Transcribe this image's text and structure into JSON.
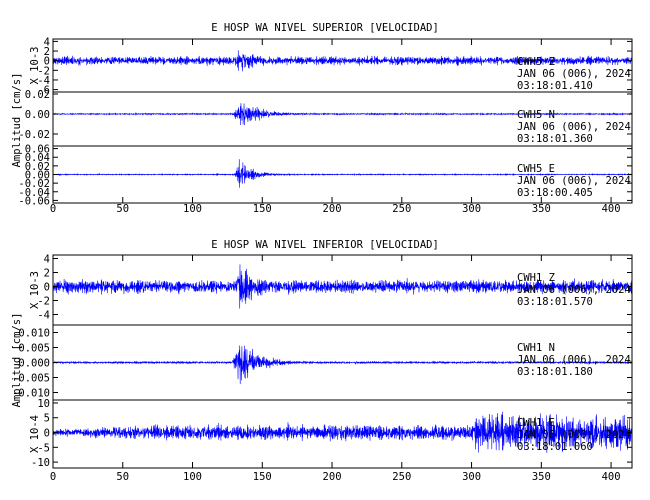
{
  "chart_data": [
    {
      "type": "line",
      "title": "E HOSP WA NIVEL SUPERIOR [VELOCIDAD]",
      "ylabel": "Amplitud [cm/s]",
      "xlim": [
        0,
        415
      ],
      "xticks": [
        0,
        50,
        100,
        150,
        200,
        250,
        300,
        350,
        400
      ],
      "traces": [
        {
          "channel": "CWH5   Z",
          "date": "JAN 06 (006), 2024",
          "time": "03:18:01.410",
          "scale_label": "X 10-3",
          "ylim": [
            -6.5,
            4.5
          ],
          "yticks": [
            4,
            2,
            0,
            -2,
            -4,
            -6
          ],
          "ytick_labels": [
            "4",
            "2",
            "0",
            "-2",
            "-4",
            "-6"
          ],
          "color": "#0000ff",
          "envelope": {
            "noise": 1.2,
            "peak": 4.3,
            "onset": 130,
            "peak_at": 133,
            "decay": 12,
            "noise_ramp": 0
          }
        },
        {
          "channel": "CWH5   N",
          "date": "JAN 06 (006), 2024",
          "time": "03:18:01.360",
          "scale_label": "",
          "ylim": [
            -0.032,
            0.022
          ],
          "yticks": [
            0.02,
            0.0,
            -0.02
          ],
          "ytick_labels": [
            "0.02",
            "0.00",
            "-0.02"
          ],
          "color": "#0000ff",
          "envelope": {
            "noise": 0.0009,
            "peak": 0.019,
            "onset": 128,
            "peak_at": 135,
            "decay": 14,
            "noise_ramp": 0
          }
        },
        {
          "channel": "CWH5   E",
          "date": "JAN 06 (006), 2024",
          "time": "03:18:00.405",
          "scale_label": "",
          "ylim": [
            -0.066,
            0.066
          ],
          "yticks": [
            0.06,
            0.04,
            0.02,
            0.0,
            -0.02,
            -0.04,
            -0.06
          ],
          "ytick_labels": [
            "0.06",
            "0.04",
            "0.02",
            "0.00",
            "-0.02",
            "-0.04",
            "-0.06"
          ],
          "color": "#0000ff",
          "envelope": {
            "noise": 0.0015,
            "peak": 0.045,
            "onset": 130,
            "peak_at": 134,
            "decay": 10,
            "noise_ramp": 0
          }
        }
      ]
    },
    {
      "type": "line",
      "title": "E HOSP WA NIVEL INFERIOR [VELOCIDAD]",
      "ylabel": "Amplitud [cm/s]",
      "xlim": [
        0,
        415
      ],
      "xticks": [
        0,
        50,
        100,
        150,
        200,
        250,
        300,
        350,
        400
      ],
      "traces": [
        {
          "channel": "CWH1   Z",
          "date": "JAN 06 (006), 2024",
          "time": "03:18:01.570",
          "scale_label": "X 10-3",
          "ylim": [
            -5.5,
            4.5
          ],
          "yticks": [
            4,
            2,
            0,
            -2,
            -4
          ],
          "ytick_labels": [
            "4",
            "2",
            "0",
            "-2",
            "-4"
          ],
          "color": "#0000ff",
          "envelope": {
            "noise": 1.3,
            "peak": 4.5,
            "onset": 130,
            "peak_at": 134,
            "decay": 12,
            "noise_ramp": 0
          }
        },
        {
          "channel": "CWH1   N",
          "date": "JAN 06 (006), 2024",
          "time": "03:18:01.180",
          "scale_label": "",
          "ylim": [
            -0.0125,
            0.0125
          ],
          "yticks": [
            0.01,
            0.005,
            0.0,
            -0.005,
            -0.01
          ],
          "ytick_labels": [
            "0.010",
            "0.005",
            "0.000",
            "-0.005",
            "-0.010"
          ],
          "color": "#0000ff",
          "envelope": {
            "noise": 0.0005,
            "peak": 0.0105,
            "onset": 128,
            "peak_at": 134,
            "decay": 14,
            "noise_ramp": 0
          }
        },
        {
          "channel": "CWH1   E",
          "date": "JAN 06 (006), 2024",
          "time": "03:18:01.060",
          "scale_label": "X 10-4",
          "ylim": [
            -12,
            11
          ],
          "yticks": [
            10,
            5,
            0,
            -5,
            -10
          ],
          "ytick_labels": [
            "10",
            "5",
            "0",
            "-5",
            "-10"
          ],
          "color": "#0000ff",
          "envelope": {
            "noise": 3.5,
            "peak": 8,
            "onset": 300,
            "peak_at": 300,
            "decay": 1000,
            "noise_ramp": 10
          }
        }
      ]
    }
  ]
}
